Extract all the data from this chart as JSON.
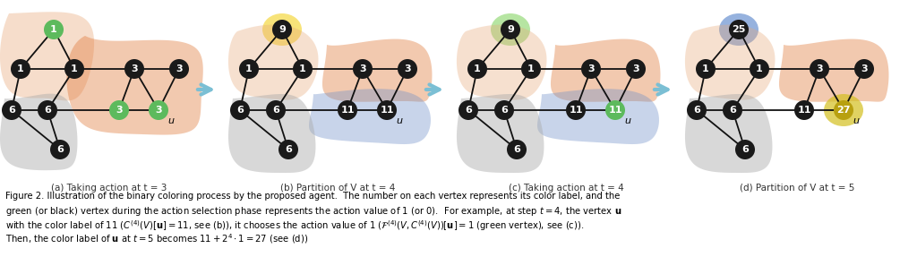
{
  "figure_width": 10.24,
  "figure_height": 2.87,
  "background_color": "#ffffff",
  "caption_a": "(a) Taking action at t = 3",
  "caption_b": "(b) Partition of V at t = 4",
  "caption_c": "(c) Taking action at t = 4",
  "caption_d": "(d) Partition of V at t = 5"
}
